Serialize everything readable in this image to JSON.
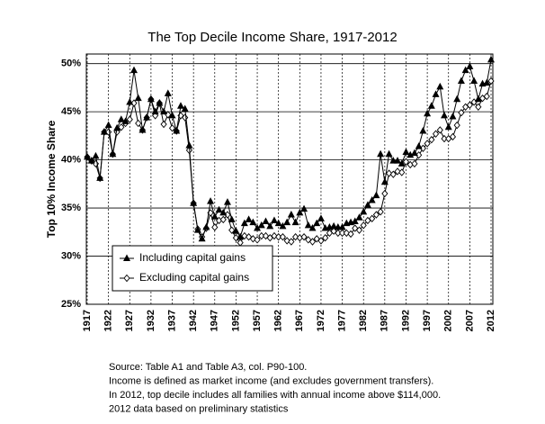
{
  "chart_data": {
    "type": "line",
    "title": "The Top Decile Income Share, 1917-2012",
    "y_label": "Top 10% Income Share",
    "x": [
      1917,
      1918,
      1919,
      1920,
      1921,
      1922,
      1923,
      1924,
      1925,
      1926,
      1927,
      1928,
      1929,
      1930,
      1931,
      1932,
      1933,
      1934,
      1935,
      1936,
      1937,
      1938,
      1939,
      1940,
      1941,
      1942,
      1943,
      1944,
      1945,
      1946,
      1947,
      1948,
      1949,
      1950,
      1951,
      1952,
      1953,
      1954,
      1955,
      1956,
      1957,
      1958,
      1959,
      1960,
      1961,
      1962,
      1963,
      1964,
      1965,
      1966,
      1967,
      1968,
      1969,
      1970,
      1971,
      1972,
      1973,
      1974,
      1975,
      1976,
      1977,
      1978,
      1979,
      1980,
      1981,
      1982,
      1983,
      1984,
      1985,
      1986,
      1987,
      1988,
      1989,
      1990,
      1991,
      1992,
      1993,
      1994,
      1995,
      1996,
      1997,
      1998,
      1999,
      2000,
      2001,
      2002,
      2003,
      2004,
      2005,
      2006,
      2007,
      2008,
      2009,
      2010,
      2011,
      2012
    ],
    "series": [
      {
        "name": "Including capital gains",
        "color": "#000000",
        "marker": "triangle",
        "values": [
          40.3,
          39.9,
          40.4,
          38.1,
          42.9,
          43.6,
          40.6,
          43.3,
          44.2,
          44.0,
          46.0,
          49.3,
          46.4,
          43.1,
          44.4,
          46.3,
          45.0,
          45.9,
          45.0,
          46.9,
          44.6,
          43.0,
          45.6,
          45.3,
          41.5,
          35.5,
          32.7,
          31.8,
          33.0,
          35.7,
          34.1,
          34.8,
          34.5,
          35.6,
          33.8,
          32.6,
          32.0,
          33.4,
          33.8,
          33.5,
          32.9,
          33.2,
          33.6,
          33.1,
          33.7,
          33.4,
          33.1,
          33.5,
          34.3,
          33.5,
          34.5,
          34.9,
          33.2,
          32.9,
          33.4,
          33.9,
          32.9,
          33.0,
          33.1,
          33.0,
          33.0,
          33.4,
          33.5,
          33.6,
          34.0,
          34.6,
          35.3,
          35.8,
          36.3,
          40.6,
          37.7,
          40.6,
          39.9,
          39.9,
          39.6,
          40.8,
          40.5,
          40.7,
          41.4,
          43.0,
          44.8,
          45.6,
          46.8,
          47.6,
          44.6,
          43.4,
          44.5,
          46.3,
          48.2,
          49.3,
          49.7,
          48.2,
          46.3,
          47.9,
          48.0,
          50.4
        ]
      },
      {
        "name": "Excluding capital gains",
        "color": "#000000",
        "marker": "diamond",
        "values": [
          40.3,
          39.9,
          39.6,
          38.1,
          42.9,
          42.9,
          40.6,
          42.9,
          43.4,
          43.8,
          44.2,
          45.9,
          43.8,
          43.1,
          44.4,
          46.3,
          44.6,
          45.9,
          43.7,
          44.7,
          43.3,
          43.0,
          44.6,
          44.4,
          41.0,
          35.5,
          32.8,
          32.0,
          32.9,
          34.5,
          33.0,
          33.7,
          33.8,
          34.3,
          32.7,
          31.9,
          31.4,
          32.1,
          32.0,
          31.8,
          31.7,
          32.1,
          32.1,
          31.9,
          32.1,
          32.0,
          32.0,
          31.6,
          31.5,
          32.0,
          31.9,
          32.0,
          31.7,
          31.5,
          31.8,
          31.6,
          31.9,
          32.4,
          32.6,
          32.4,
          32.4,
          32.4,
          32.3,
          32.9,
          32.7,
          33.2,
          33.7,
          33.9,
          34.3,
          34.6,
          36.5,
          38.6,
          38.5,
          38.8,
          38.7,
          39.8,
          39.5,
          39.6,
          40.5,
          41.2,
          41.7,
          42.1,
          42.7,
          43.1,
          42.2,
          42.2,
          42.4,
          43.6,
          44.9,
          45.5,
          45.7,
          46.0,
          45.5,
          46.4,
          46.6,
          48.2
        ]
      }
    ],
    "xlim": [
      1917,
      2012
    ],
    "xticks": [
      1917,
      1922,
      1927,
      1932,
      1937,
      1942,
      1947,
      1952,
      1957,
      1962,
      1967,
      1972,
      1977,
      1982,
      1987,
      1992,
      1997,
      2002,
      2007,
      2012
    ],
    "ylim": [
      25,
      51
    ],
    "yticks": [
      {
        "value": 25,
        "label": "25%"
      },
      {
        "value": 30,
        "label": "30%"
      },
      {
        "value": 35,
        "label": "35%"
      },
      {
        "value": 40,
        "label": "40%"
      },
      {
        "value": 45,
        "label": "45%"
      },
      {
        "value": 50,
        "label": "50%"
      }
    ],
    "grid": true,
    "legend_position": "lower left",
    "notes": [
      "Source: Table A1 and Table A3, col. P90-100.",
      "Income is defined as market income (and excludes government transfers).",
      "In 2012, top decile includes all families with annual income above $114,000.",
      "2012 data based on preliminary statistics"
    ]
  }
}
